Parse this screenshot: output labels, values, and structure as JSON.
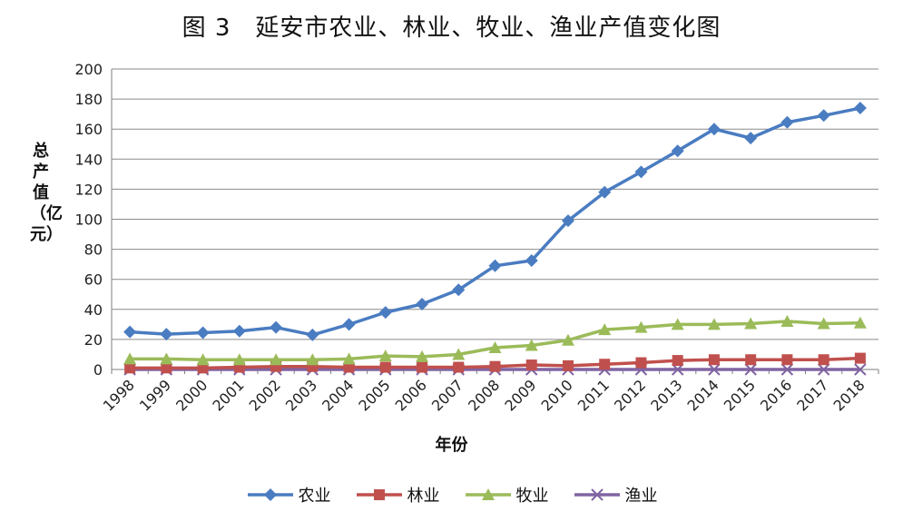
{
  "chart_data": {
    "type": "line",
    "title": "图 3　延安市农业、林业、牧业、渔业产值变化图",
    "xlabel": "年份",
    "ylabel": "总产值（亿元）",
    "ylim": [
      0,
      200
    ],
    "yticks": [
      "0",
      "20",
      "40",
      "60",
      "80",
      "100",
      "120",
      "140",
      "160",
      "180",
      "200"
    ],
    "grid": true,
    "legend_position": "bottom",
    "categories": [
      "1998",
      "1999",
      "2000",
      "2001",
      "2002",
      "2003",
      "2004",
      "2005",
      "2006",
      "2007",
      "2008",
      "2009",
      "2010",
      "2011",
      "2012",
      "2013",
      "2014",
      "2015",
      "2016",
      "2017",
      "2018"
    ],
    "series": [
      {
        "name": "农业",
        "color": "#4a7cc1",
        "marker": "diamond",
        "values": [
          25,
          23.5,
          24.5,
          25.5,
          28,
          23,
          30,
          38,
          43.5,
          53,
          69,
          72.5,
          99,
          118,
          131.5,
          145.5,
          160,
          154,
          164.5,
          169,
          174
        ]
      },
      {
        "name": "林业",
        "color": "#c0504d",
        "marker": "square",
        "values": [
          1,
          1,
          1,
          1.5,
          2,
          2,
          1.5,
          1.5,
          1.5,
          1.5,
          2,
          3,
          2.5,
          3.5,
          4.5,
          6,
          6.5,
          6.5,
          6.5,
          6.5,
          7.5
        ]
      },
      {
        "name": "牧业",
        "color": "#9bbb59",
        "marker": "triangle",
        "values": [
          7,
          7,
          6.5,
          6.5,
          6.5,
          6.5,
          7,
          9,
          8.5,
          10,
          14.5,
          16,
          19.5,
          26.5,
          28,
          30,
          30,
          30.5,
          32,
          30.5,
          31
        ]
      },
      {
        "name": "渔业",
        "color": "#8064a2",
        "marker": "x",
        "values": [
          0,
          0,
          0,
          0,
          0,
          0,
          0,
          0,
          0,
          0,
          0,
          0,
          0,
          0,
          0,
          0,
          0,
          0,
          0,
          0,
          0
        ]
      }
    ]
  }
}
